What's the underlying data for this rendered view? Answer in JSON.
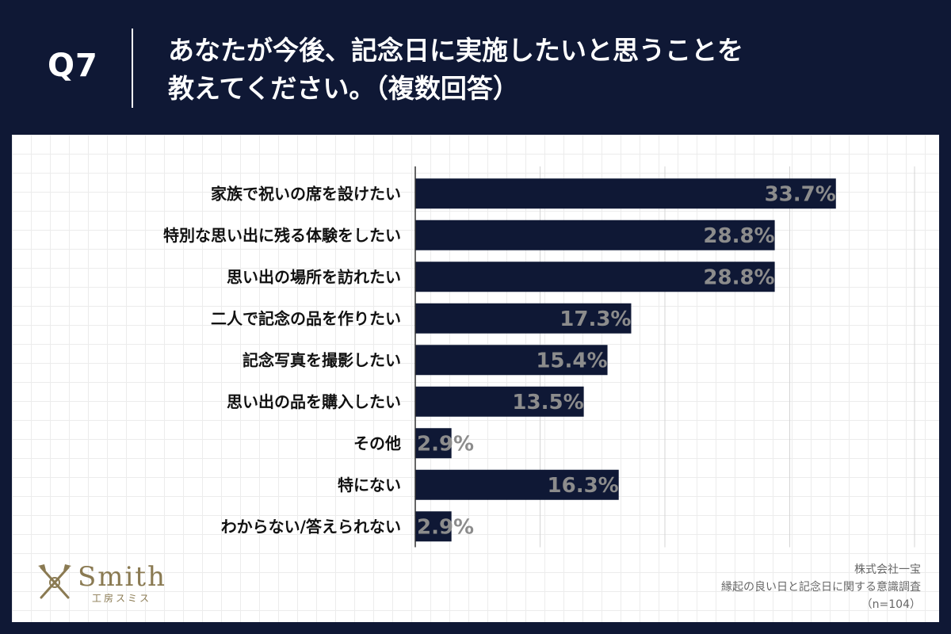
{
  "header": {
    "q_label": "Q7",
    "title_line1": "あなたが今後、記念日に実施したいと思うことを",
    "title_line2": "教えてください。（複数回答）"
  },
  "logo": {
    "name": "Smith",
    "sub": "工房スミス"
  },
  "footer": {
    "company": "株式会社一宝",
    "survey": "縁起の良い日と記念日に関する意識調査",
    "sample": "（n=104）"
  },
  "colors": {
    "background": "#0f1835",
    "bar": "#0f1835",
    "value_label": "#8c8c8c",
    "logo": "#8a7a52"
  },
  "chart_data": {
    "type": "bar",
    "orientation": "horizontal",
    "categories": [
      "家族で祝いの席を設けたい",
      "特別な思い出に残る体験をしたい",
      "思い出の場所を訪れたい",
      "二人で記念の品を作りたい",
      "記念写真を撮影したい",
      "思い出の品を購入したい",
      "その他",
      "特にない",
      "わからない/答えられない"
    ],
    "values": [
      33.7,
      28.8,
      28.8,
      17.3,
      15.4,
      13.5,
      2.9,
      16.3,
      2.9
    ],
    "value_labels": [
      "33.7%",
      "28.8%",
      "28.8%",
      "17.3%",
      "15.4%",
      "13.5%",
      "2.9%",
      "16.3%",
      "2.9%"
    ],
    "xlim": [
      0,
      40
    ],
    "grid": true
  }
}
